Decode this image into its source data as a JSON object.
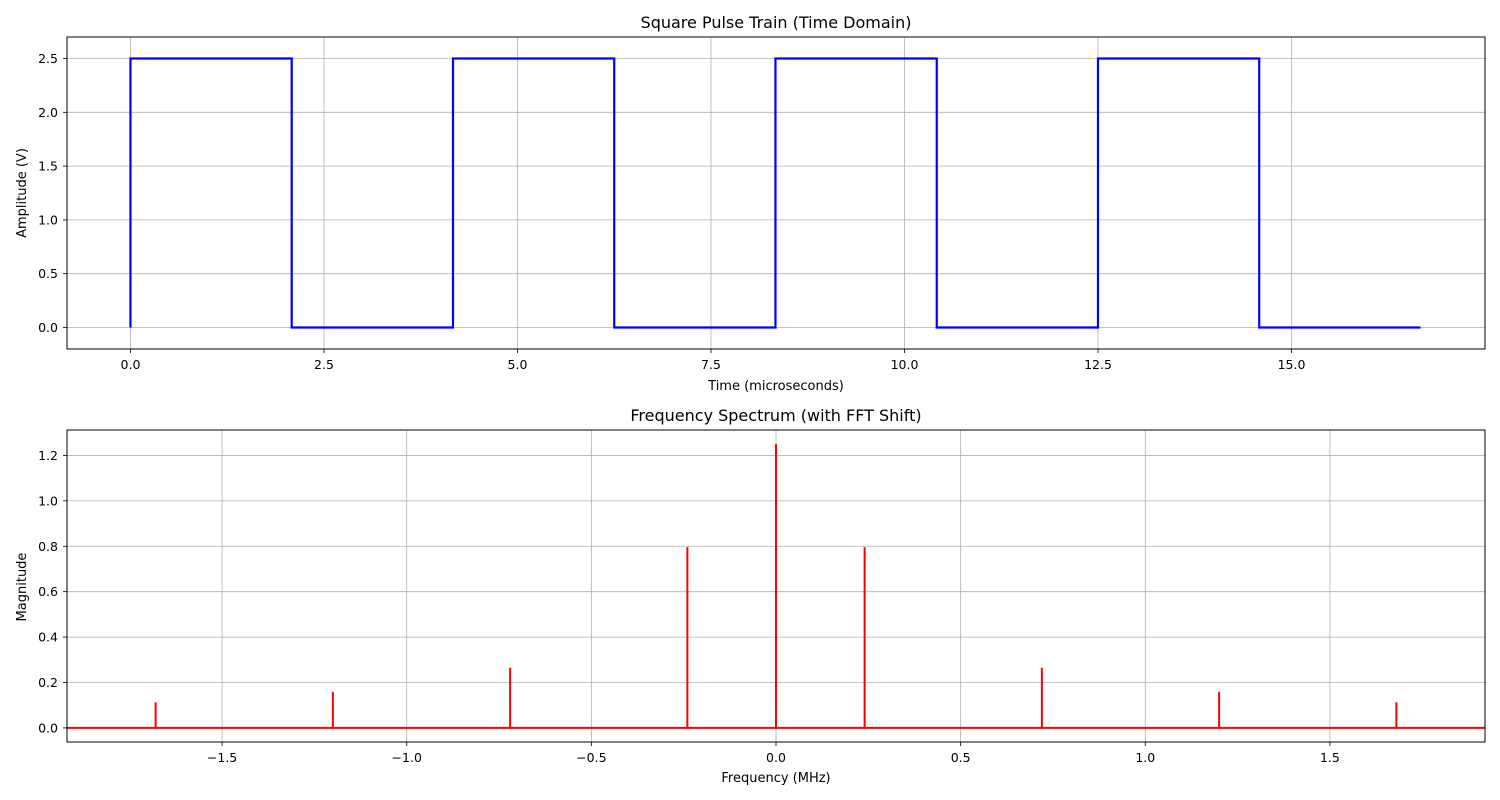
{
  "chart_data": [
    {
      "type": "line",
      "title": "Square Pulse Train (Time Domain)",
      "xlabel": "Time (microseconds)",
      "ylabel": "Amplitude (V)",
      "xlim": [
        -0.82,
        17.5
      ],
      "ylim": [
        -0.2,
        2.7
      ],
      "xticks": [
        0.0,
        2.5,
        5.0,
        7.5,
        10.0,
        12.5,
        15.0
      ],
      "xtick_labels": [
        "0.0",
        "2.5",
        "5.0",
        "7.5",
        "10.0",
        "12.5",
        "15.0"
      ],
      "yticks": [
        0.0,
        0.5,
        1.0,
        1.5,
        2.0,
        2.5
      ],
      "ytick_labels": [
        "0.0",
        "0.5",
        "1.0",
        "1.5",
        "2.0",
        "2.5"
      ],
      "grid": true,
      "color": "#0000ff",
      "series": [
        {
          "x": [
            0.0,
            0.0,
            2.083,
            2.083,
            4.167,
            4.167,
            6.25,
            6.25,
            8.333,
            8.333,
            10.417,
            10.417,
            12.5,
            12.5,
            14.583,
            14.583,
            16.667
          ],
          "y": [
            0.0,
            2.5,
            2.5,
            0.0,
            0.0,
            2.5,
            2.5,
            0.0,
            0.0,
            2.5,
            2.5,
            0.0,
            0.0,
            2.5,
            2.5,
            0.0,
            0.0
          ]
        }
      ]
    },
    {
      "type": "line",
      "title": "Frequency Spectrum (with FFT Shift)",
      "xlabel": "Frequency (MHz)",
      "ylabel": "Magnitude",
      "xlim": [
        -1.92,
        1.92
      ],
      "ylim": [
        -0.062,
        1.312
      ],
      "xticks": [
        -1.5,
        -1.0,
        -0.5,
        0.0,
        0.5,
        1.0,
        1.5
      ],
      "xtick_labels": [
        "−1.5",
        "−1.0",
        "−0.5",
        "0.0",
        "0.5",
        "1.0",
        "1.5"
      ],
      "yticks": [
        0.0,
        0.2,
        0.4,
        0.6,
        0.8,
        1.0,
        1.2
      ],
      "ytick_labels": [
        "0.0",
        "0.2",
        "0.4",
        "0.6",
        "0.8",
        "1.0",
        "1.2"
      ],
      "grid": true,
      "color": "#ff0000",
      "baseline": 0.0,
      "peaks": {
        "x": [
          -1.68,
          -1.2,
          -0.72,
          -0.24,
          0.0,
          0.24,
          0.72,
          1.2,
          1.68
        ],
        "y": [
          0.113,
          0.159,
          0.265,
          0.796,
          1.25,
          0.796,
          0.265,
          0.159,
          0.113
        ]
      }
    }
  ]
}
